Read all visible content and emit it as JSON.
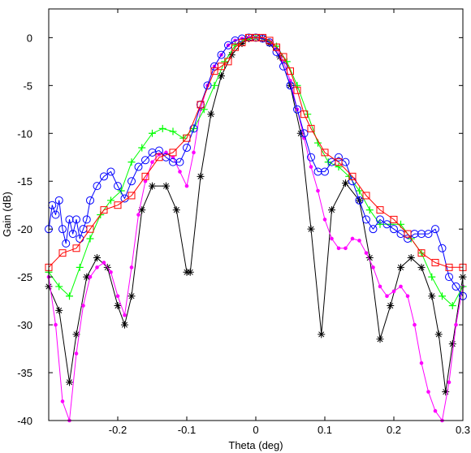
{
  "chart_data": {
    "type": "line",
    "title": "",
    "xlabel": "Theta (deg)",
    "ylabel": "Gain (dB)",
    "xlim": [
      -0.3,
      0.3
    ],
    "ylim": [
      -40,
      3
    ],
    "xticks": [
      -0.2,
      -0.1,
      0,
      0.1,
      0.2,
      0.3
    ],
    "xtick_labels": [
      "-0.2",
      "-0.1",
      "0",
      "0.1",
      "0.2",
      "0.3"
    ],
    "yticks": [
      0,
      -5,
      -10,
      -15,
      -20,
      -25,
      -30,
      -35,
      -40
    ],
    "ytick_labels": [
      "0",
      "-5",
      "-10",
      "-15",
      "-20",
      "-25",
      "-30",
      "-35",
      "-40"
    ],
    "grid": false,
    "legend": "none",
    "series": [
      {
        "color": "#000000",
        "marker": "asterisk",
        "x": [
          -0.3,
          -0.285,
          -0.27,
          -0.26,
          -0.245,
          -0.23,
          -0.215,
          -0.2,
          -0.19,
          -0.18,
          -0.165,
          -0.15,
          -0.13,
          -0.115,
          -0.1,
          -0.095,
          -0.08,
          -0.065,
          -0.05,
          -0.035,
          -0.02,
          -0.01,
          0,
          0.01,
          0.02,
          0.035,
          0.05,
          0.065,
          0.08,
          0.095,
          0.11,
          0.13,
          0.15,
          0.165,
          0.18,
          0.195,
          0.21,
          0.225,
          0.24,
          0.255,
          0.265,
          0.275,
          0.285,
          0.3
        ],
        "y": [
          -26,
          -28.5,
          -36,
          -31,
          -25,
          -23,
          -24,
          -28,
          -30,
          -27,
          -18,
          -15.5,
          -15.5,
          -18,
          -24.5,
          -24.5,
          -14.5,
          -8,
          -4,
          -1.8,
          -0.6,
          -0.1,
          0,
          -0.1,
          -0.6,
          -2,
          -5,
          -10,
          -20,
          -31,
          -18,
          -15.2,
          -17,
          -23,
          -31.5,
          -28,
          -24,
          -23,
          -24,
          -27,
          -31,
          -37,
          -32,
          -25
        ]
      },
      {
        "color": "#ff00ff",
        "marker": "dot",
        "x": [
          -0.3,
          -0.29,
          -0.28,
          -0.27,
          -0.26,
          -0.25,
          -0.24,
          -0.23,
          -0.22,
          -0.21,
          -0.2,
          -0.19,
          -0.18,
          -0.17,
          -0.16,
          -0.15,
          -0.14,
          -0.13,
          -0.12,
          -0.11,
          -0.1,
          -0.09,
          -0.08,
          -0.07,
          -0.06,
          -0.05,
          -0.04,
          -0.03,
          -0.02,
          -0.01,
          0,
          0.01,
          0.02,
          0.03,
          0.04,
          0.05,
          0.06,
          0.07,
          0.08,
          0.09,
          0.1,
          0.11,
          0.12,
          0.13,
          0.14,
          0.15,
          0.16,
          0.17,
          0.18,
          0.19,
          0.2,
          0.21,
          0.22,
          0.23,
          0.24,
          0.25,
          0.26,
          0.27,
          0.28,
          0.29,
          0.3
        ],
        "y": [
          -25,
          -30,
          -38,
          -40,
          -33,
          -28,
          -25,
          -24,
          -23.5,
          -24.5,
          -27,
          -29,
          -24,
          -18.5,
          -15,
          -13,
          -12.2,
          -12,
          -12.5,
          -14,
          -15.5,
          -12,
          -7.5,
          -5,
          -3,
          -1.8,
          -0.8,
          -0.3,
          -0.1,
          0,
          0,
          -0.1,
          -0.4,
          -1.2,
          -2.5,
          -4.5,
          -7.5,
          -10.5,
          -13.5,
          -16,
          -19,
          -21,
          -22,
          -22,
          -21,
          -21.2,
          -22.5,
          -24,
          -26,
          -27,
          -26.5,
          -26,
          -27,
          -30,
          -34,
          -37,
          -39,
          -40,
          -36,
          -30,
          -26
        ]
      },
      {
        "color": "#00ff00",
        "marker": "plus",
        "x": [
          -0.3,
          -0.285,
          -0.27,
          -0.255,
          -0.24,
          -0.225,
          -0.21,
          -0.195,
          -0.18,
          -0.165,
          -0.15,
          -0.135,
          -0.12,
          -0.105,
          -0.09,
          -0.075,
          -0.06,
          -0.045,
          -0.03,
          -0.015,
          0,
          0.015,
          0.03,
          0.045,
          0.06,
          0.075,
          0.09,
          0.105,
          0.12,
          0.135,
          0.15,
          0.165,
          0.18,
          0.195,
          0.21,
          0.225,
          0.24,
          0.255,
          0.27,
          0.285,
          0.3
        ],
        "y": [
          -24.5,
          -26,
          -27,
          -24,
          -21,
          -18.5,
          -17,
          -16,
          -13,
          -11.5,
          -10,
          -9.5,
          -9.8,
          -10.5,
          -9.5,
          -7.5,
          -5,
          -2.5,
          -0.8,
          -0.2,
          0,
          -0.2,
          -0.9,
          -2.5,
          -5,
          -8,
          -11,
          -13,
          -13.5,
          -14.5,
          -16,
          -18,
          -19.5,
          -19.5,
          -19.5,
          -21,
          -22.5,
          -25,
          -27,
          -28,
          -26
        ]
      },
      {
        "color": "#0000ff",
        "marker": "circle",
        "x": [
          -0.3,
          -0.295,
          -0.29,
          -0.285,
          -0.28,
          -0.275,
          -0.27,
          -0.265,
          -0.26,
          -0.255,
          -0.25,
          -0.245,
          -0.24,
          -0.23,
          -0.22,
          -0.21,
          -0.2,
          -0.19,
          -0.18,
          -0.17,
          -0.16,
          -0.15,
          -0.14,
          -0.13,
          -0.12,
          -0.11,
          -0.1,
          -0.09,
          -0.08,
          -0.07,
          -0.06,
          -0.05,
          -0.04,
          -0.03,
          -0.02,
          -0.01,
          0,
          0.01,
          0.02,
          0.03,
          0.04,
          0.05,
          0.06,
          0.07,
          0.08,
          0.09,
          0.1,
          0.11,
          0.12,
          0.13,
          0.14,
          0.15,
          0.16,
          0.17,
          0.18,
          0.19,
          0.2,
          0.21,
          0.22,
          0.23,
          0.24,
          0.25,
          0.26,
          0.27,
          0.28,
          0.29,
          0.3
        ],
        "y": [
          -20,
          -17.5,
          -18.5,
          -17,
          -20,
          -21.5,
          -19,
          -20.5,
          -19,
          -21,
          -20,
          -19,
          -17,
          -15.5,
          -14.5,
          -14,
          -15.5,
          -16.8,
          -15,
          -13.5,
          -12.8,
          -12,
          -11.8,
          -12.5,
          -13,
          -13,
          -11.5,
          -9.5,
          -7,
          -5,
          -3,
          -1.8,
          -0.8,
          -0.3,
          -0.1,
          0,
          0,
          -0.1,
          -0.5,
          -1.5,
          -3,
          -5,
          -7.5,
          -10,
          -12.5,
          -14,
          -14,
          -13,
          -12.5,
          -13,
          -15,
          -17,
          -19,
          -20,
          -19,
          -19.5,
          -20,
          -20.5,
          -21,
          -20.5,
          -20.5,
          -20.5,
          -20,
          -22,
          -25,
          -26,
          -27
        ]
      },
      {
        "color": "#ff0000",
        "marker": "square",
        "x": [
          -0.3,
          -0.28,
          -0.26,
          -0.24,
          -0.22,
          -0.2,
          -0.18,
          -0.16,
          -0.14,
          -0.12,
          -0.1,
          -0.08,
          -0.06,
          -0.05,
          -0.04,
          -0.03,
          -0.02,
          -0.01,
          0,
          0.01,
          0.02,
          0.03,
          0.04,
          0.05,
          0.06,
          0.07,
          0.08,
          0.1,
          0.12,
          0.14,
          0.16,
          0.18,
          0.2,
          0.22,
          0.24,
          0.26,
          0.28,
          0.3
        ],
        "y": [
          -24,
          -22.5,
          -22,
          -20,
          -18,
          -17.5,
          -16.5,
          -14.5,
          -12.5,
          -12,
          -10.5,
          -7,
          -3.5,
          -3,
          -2.5,
          -1,
          -0.5,
          0,
          0,
          0,
          -0.3,
          -1,
          -2,
          -3.5,
          -5.5,
          -8,
          -9.5,
          -12,
          -13,
          -14.5,
          -16.5,
          -18,
          -19,
          -20.5,
          -22.5,
          -23.5,
          -24,
          -24
        ]
      }
    ]
  }
}
